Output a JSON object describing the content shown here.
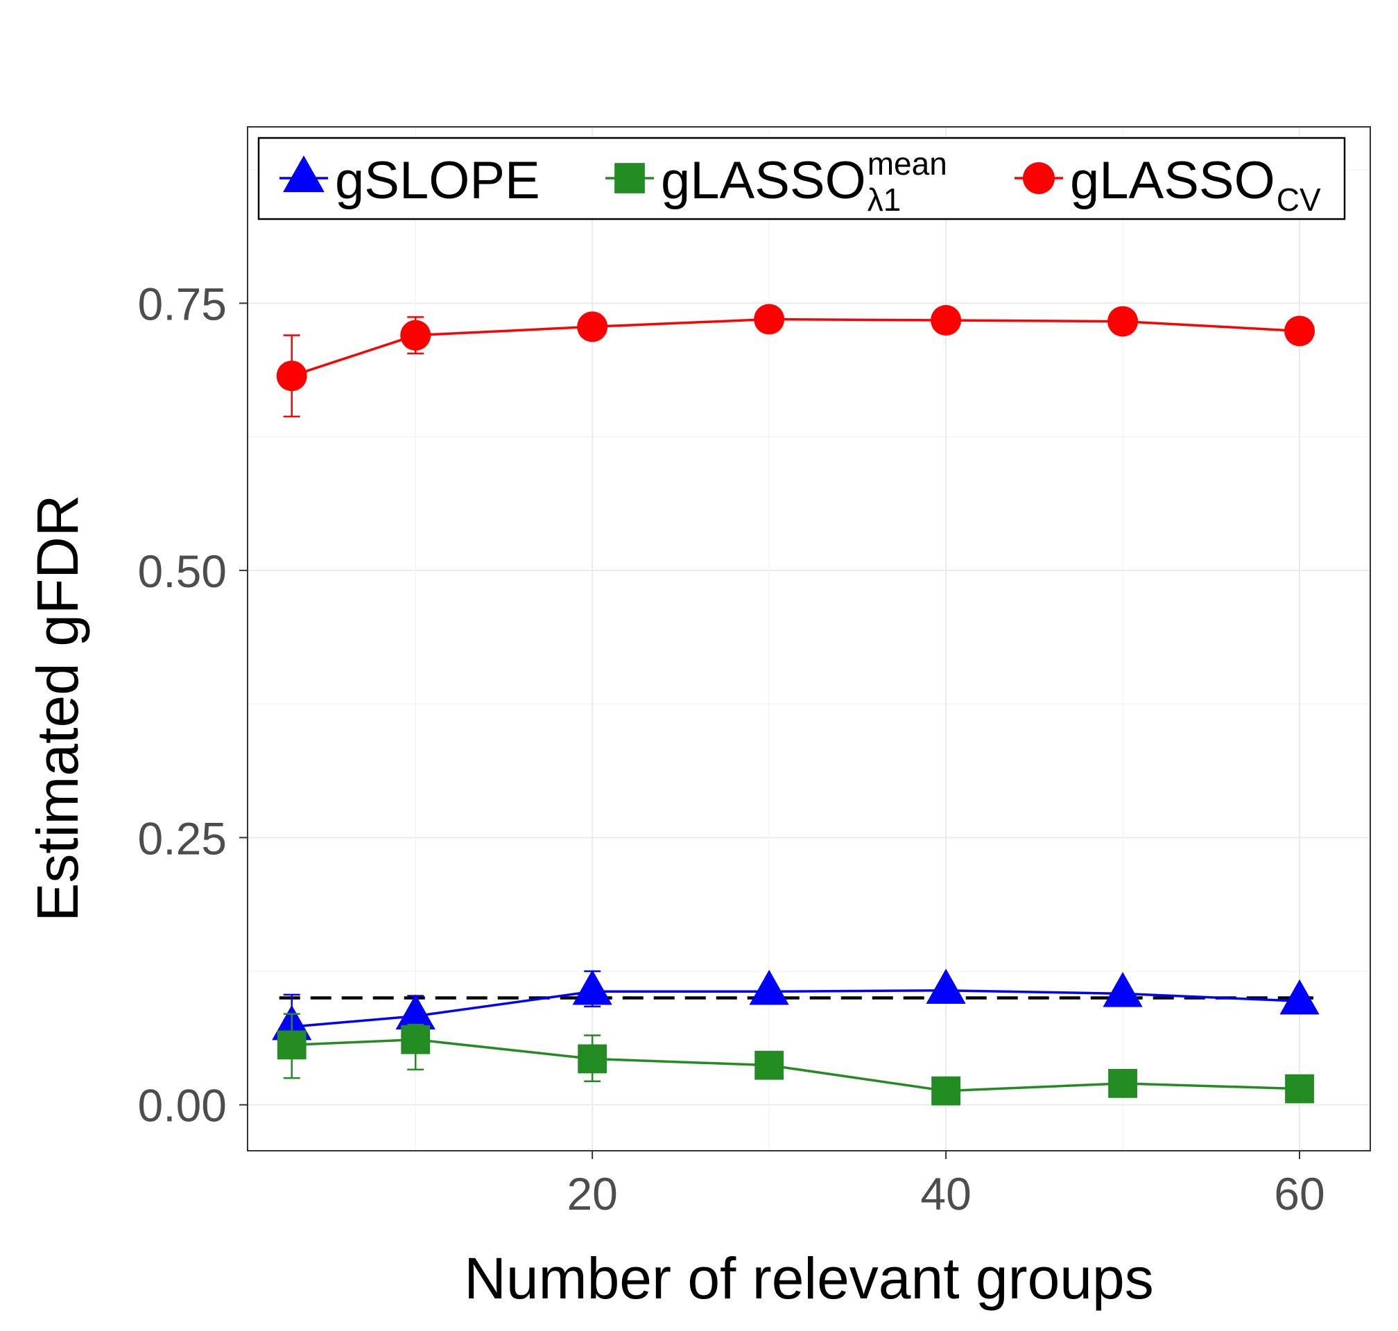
{
  "chart_data": {
    "type": "line",
    "xlabel": "Number of relevant groups",
    "ylabel": "Estimated gFDR",
    "xlim": [
      0.5,
      64
    ],
    "ylim": [
      -0.043,
      0.915
    ],
    "x_ticks": [
      20,
      40,
      60
    ],
    "x_tick_labels": [
      "20",
      "40",
      "60"
    ],
    "y_ticks": [
      0.0,
      0.25,
      0.5,
      0.75
    ],
    "y_tick_labels": [
      "0.00",
      "0.25",
      "0.50",
      "0.75"
    ],
    "grid": true,
    "legend_position": "top",
    "reference_line": {
      "y": 0.1,
      "style": "dashed",
      "color": "#000000"
    },
    "x": [
      3,
      10,
      20,
      30,
      40,
      50,
      60
    ],
    "series": [
      {
        "name": "gSLOPE",
        "legend_main": "gSLOPE",
        "legend_sub": "",
        "legend_sup": "",
        "color": "#0000ff",
        "marker": "triangle",
        "values": [
          0.073,
          0.083,
          0.106,
          0.106,
          0.107,
          0.104,
          0.097
        ],
        "err_low": [
          0.068,
          0.08,
          0.092,
          0.106,
          0.107,
          0.104,
          0.097
        ],
        "err_high": [
          0.103,
          0.102,
          0.125,
          0.106,
          0.107,
          0.104,
          0.097
        ]
      },
      {
        "name": "gLASSO λ1 mean",
        "legend_main": "gLASSO",
        "legend_sub": "λ1",
        "legend_sup": "mean",
        "color": "#228b22",
        "marker": "square",
        "values": [
          0.056,
          0.061,
          0.043,
          0.037,
          0.013,
          0.02,
          0.015
        ],
        "err_low": [
          0.025,
          0.033,
          0.022,
          0.037,
          0.013,
          0.02,
          0.015
        ],
        "err_high": [
          0.085,
          0.075,
          0.065,
          0.037,
          0.013,
          0.02,
          0.015
        ]
      },
      {
        "name": "gLASSO CV",
        "legend_main": "gLASSO",
        "legend_sub": "CV",
        "legend_sup": "",
        "color": "#ff0000",
        "marker": "circle",
        "values": [
          0.682,
          0.72,
          0.728,
          0.735,
          0.734,
          0.733,
          0.724
        ],
        "err_low": [
          0.644,
          0.703,
          0.728,
          0.735,
          0.734,
          0.733,
          0.724
        ],
        "err_high": [
          0.72,
          0.737,
          0.728,
          0.735,
          0.734,
          0.733,
          0.724
        ]
      }
    ]
  }
}
